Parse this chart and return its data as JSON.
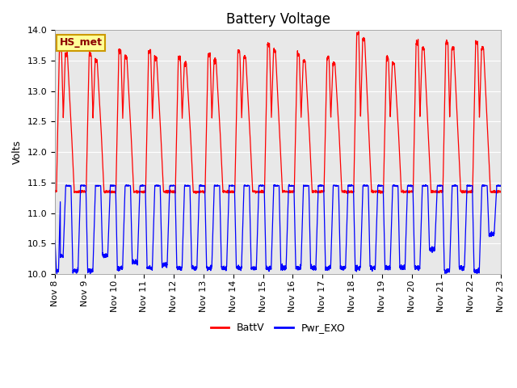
{
  "title": "Battery Voltage",
  "ylabel": "Volts",
  "ylim": [
    10.0,
    14.0
  ],
  "yticks": [
    10.0,
    10.5,
    11.0,
    11.5,
    12.0,
    12.5,
    13.0,
    13.5,
    14.0
  ],
  "xtick_labels": [
    "Nov 8",
    "Nov 9",
    "Nov 10",
    "Nov 11",
    "Nov 12",
    "Nov 13",
    "Nov 14",
    "Nov 15",
    "Nov 16",
    "Nov 17",
    "Nov 18",
    "Nov 19",
    "Nov 20",
    "Nov 21",
    "Nov 22",
    "Nov 23"
  ],
  "legend_labels": [
    "BattV",
    "Pwr_EXO"
  ],
  "legend_colors": [
    "#ff0000",
    "#0000ff"
  ],
  "line_colors": [
    "#ff0000",
    "#0000ff"
  ],
  "annotation_text": "HS_met",
  "annotation_color": "#8B0000",
  "annotation_bg": "#ffff99",
  "annotation_border": "#cc9900",
  "background_color": "#e8e8e8",
  "grid_color": "#ffffff",
  "title_fontsize": 12,
  "label_fontsize": 9,
  "tick_fontsize": 8,
  "legend_fontsize": 9,
  "n_days": 15
}
